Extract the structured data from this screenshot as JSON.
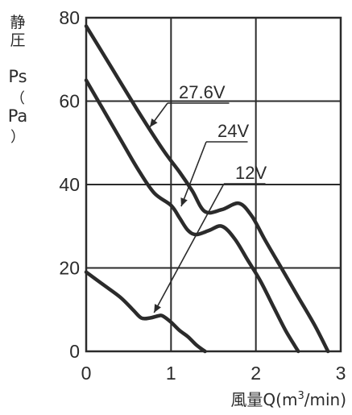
{
  "chart_data": {
    "type": "line",
    "ylabel": "静圧 Ps（Pa）",
    "ylabel_chars": [
      "静",
      "圧",
      "Ps",
      "（",
      "Pa",
      "）"
    ],
    "xlabel": "風量Q(m³/min)",
    "xlabel_parts": {
      "main": "風量Q(m",
      "sup": "3",
      "tail": "/min)"
    },
    "xlim": [
      0,
      3
    ],
    "ylim": [
      0,
      80
    ],
    "xticks": [
      "0",
      "1",
      "2",
      "3"
    ],
    "yticks": [
      "0",
      "20",
      "40",
      "60",
      "80"
    ],
    "grid": true,
    "series": [
      {
        "name": "27.6V",
        "x": [
          0,
          0.3,
          0.6,
          0.9,
          1.1,
          1.25,
          1.4,
          1.6,
          1.8,
          1.95,
          2.1,
          2.3,
          2.5,
          2.7,
          2.85
        ],
        "y": [
          78,
          68,
          58,
          48.5,
          43,
          38.5,
          33.5,
          34,
          35.5,
          32.5,
          27,
          20,
          13,
          6,
          0
        ]
      },
      {
        "name": "24V",
        "x": [
          0,
          0.2,
          0.4,
          0.6,
          0.8,
          1.0,
          1.1,
          1.2,
          1.3,
          1.45,
          1.6,
          1.75,
          1.9,
          2.05,
          2.2,
          2.35,
          2.5
        ],
        "y": [
          65,
          58,
          51,
          44,
          38,
          35,
          32,
          29,
          28,
          29,
          30,
          27,
          22,
          17,
          11,
          5,
          0
        ]
      },
      {
        "name": "12V",
        "x": [
          0,
          0.2,
          0.4,
          0.55,
          0.65,
          0.75,
          0.85,
          0.9,
          1.0,
          1.1,
          1.2,
          1.3,
          1.4
        ],
        "y": [
          19,
          16,
          13,
          10,
          8,
          8,
          8.5,
          8.5,
          7,
          5,
          3.5,
          1.5,
          0
        ]
      }
    ],
    "annotations": [
      "27.6V",
      "24V",
      "12V"
    ]
  }
}
